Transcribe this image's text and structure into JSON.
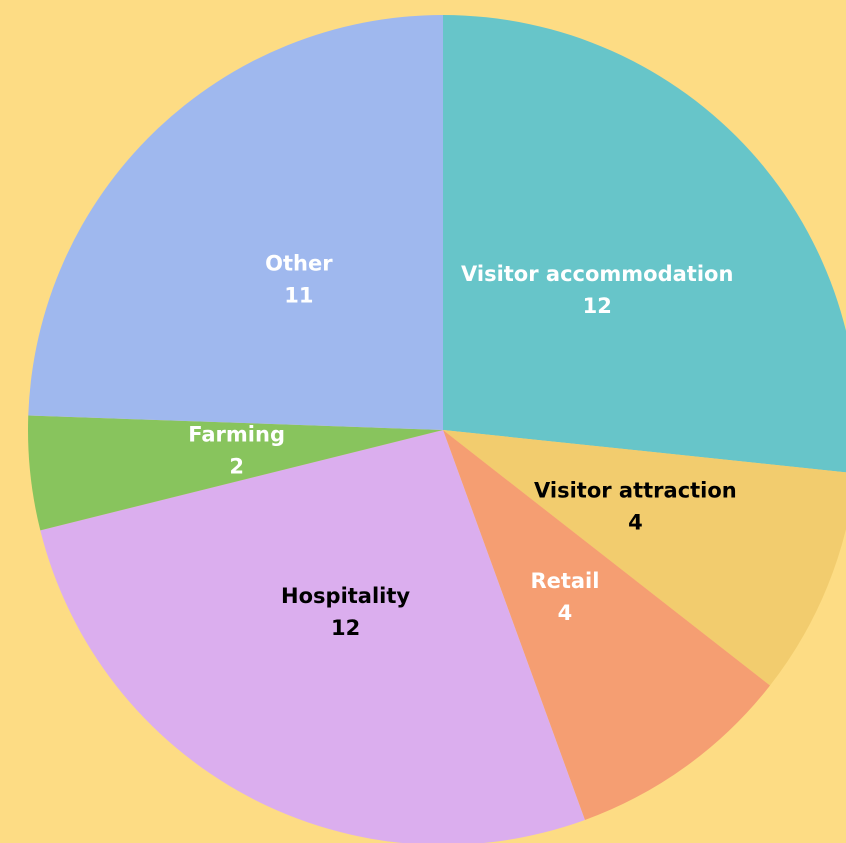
{
  "chart_data": {
    "type": "pie",
    "categories": [
      "Visitor accommodation",
      "Visitor attraction",
      "Retail",
      "Hospitality",
      "Farming",
      "Other"
    ],
    "values": [
      12,
      4,
      4,
      12,
      2,
      11
    ],
    "colors": [
      "#67c5c9",
      "#f2cc6e",
      "#f59e72",
      "#dbaeee",
      "#88c45d",
      "#9fb8ee"
    ],
    "label_colors": [
      "#ffffff",
      "#000000",
      "#ffffff",
      "#000000",
      "#ffffff",
      "#ffffff"
    ],
    "background": "#fddc84"
  }
}
